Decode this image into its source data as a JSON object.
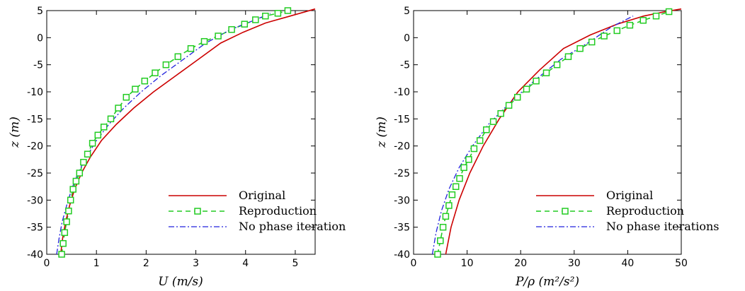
{
  "colors": {
    "original": "#cc0000",
    "reproduction": "#22cc22",
    "no_phase": "#2222dd"
  },
  "chart_data": [
    {
      "type": "line",
      "xlabel": "U (m/s)",
      "ylabel": "z (m)",
      "xlim": [
        0,
        5.4
      ],
      "ylim": [
        -40,
        5
      ],
      "xticks": [
        0,
        1,
        2,
        3,
        4,
        5
      ],
      "yticks": [
        -40,
        -35,
        -30,
        -25,
        -20,
        -15,
        -10,
        -5,
        0,
        5
      ],
      "xtick_labels": [
        "0",
        "1",
        "2",
        "3",
        "4",
        "5"
      ],
      "ytick_labels": [
        "-40",
        "-35",
        "-30",
        "-25",
        "-20",
        "-15",
        "-10",
        "-5",
        "0",
        "5"
      ],
      "legend_position": "bottom-right",
      "series": [
        {
          "name": "Original",
          "style": "solid",
          "color": "#cc0000",
          "x": [
            0.28,
            0.32,
            0.38,
            0.46,
            0.56,
            0.7,
            0.88,
            1.1,
            1.4,
            1.75,
            2.15,
            2.6,
            3.05,
            3.5,
            3.95,
            4.4,
            4.9,
            5.4
          ],
          "y": [
            -40,
            -37,
            -34,
            -31,
            -28,
            -25,
            -22,
            -19,
            -16,
            -13,
            -10,
            -7,
            -4,
            -1,
            1,
            2.7,
            4,
            5.3
          ]
        },
        {
          "name": "Reproduction",
          "style": "dashed-square",
          "color": "#22cc22",
          "x": [
            0.3,
            0.33,
            0.36,
            0.4,
            0.44,
            0.48,
            0.53,
            0.59,
            0.66,
            0.74,
            0.82,
            0.92,
            1.03,
            1.15,
            1.29,
            1.44,
            1.6,
            1.78,
            1.97,
            2.18,
            2.4,
            2.64,
            2.9,
            3.17,
            3.45,
            3.72,
            3.98,
            4.2,
            4.4,
            4.65,
            4.85
          ],
          "y": [
            -40,
            -38,
            -36,
            -34,
            -32,
            -30,
            -28,
            -26.5,
            -25,
            -23,
            -21.5,
            -19.5,
            -18,
            -16.5,
            -15,
            -13,
            -11,
            -9.5,
            -8,
            -6.5,
            -5,
            -3.5,
            -2,
            -0.7,
            0.3,
            1.5,
            2.5,
            3.3,
            4,
            4.5,
            5
          ]
        },
        {
          "name": "No phase iteration",
          "style": "dashdot",
          "color": "#2222dd",
          "x": [
            0.2,
            0.25,
            0.31,
            0.4,
            0.5,
            0.63,
            0.8,
            1.0,
            1.25,
            1.55,
            1.9,
            2.3,
            2.75,
            3.2,
            3.7,
            4.2,
            4.5
          ],
          "y": [
            -40,
            -37,
            -34,
            -31,
            -28,
            -25,
            -22,
            -19,
            -16,
            -13,
            -10,
            -7,
            -4,
            -1,
            1.5,
            3.3,
            4.5
          ]
        }
      ]
    },
    {
      "type": "line",
      "xlabel": "P/ρ (m²/s²)",
      "ylabel": "z (m)",
      "xlim": [
        0,
        50
      ],
      "ylim": [
        -40,
        5
      ],
      "xticks": [
        0,
        10,
        20,
        30,
        40,
        50
      ],
      "yticks": [
        -40,
        -35,
        -30,
        -25,
        -20,
        -15,
        -10,
        -5,
        0,
        5
      ],
      "xtick_labels": [
        "0",
        "10",
        "20",
        "30",
        "40",
        "50"
      ],
      "ytick_labels": [
        "-40",
        "-35",
        "-30",
        "-25",
        "-20",
        "-15",
        "-10",
        "-5",
        "0",
        "5"
      ],
      "legend_position": "bottom-right",
      "series": [
        {
          "name": "Original",
          "style": "solid",
          "color": "#cc0000",
          "x": [
            6,
            7,
            8.5,
            10.5,
            13,
            16,
            19.5,
            23.5,
            28,
            33,
            38,
            43,
            47,
            50
          ],
          "y": [
            -40,
            -35,
            -30,
            -25,
            -20,
            -15,
            -10,
            -6,
            -2,
            0.5,
            2.5,
            4,
            4.8,
            5.3
          ]
        },
        {
          "name": "Reproduction",
          "style": "dashed-square",
          "color": "#22cc22",
          "x": [
            4.5,
            5.0,
            5.5,
            6.0,
            6.6,
            7.2,
            7.9,
            8.6,
            9.4,
            10.3,
            11.3,
            12.4,
            13.6,
            14.9,
            16.3,
            17.8,
            19.4,
            21.1,
            22.9,
            24.8,
            26.8,
            28.9,
            31.1,
            33.3,
            35.6,
            38.0,
            40.4,
            42.9,
            45.3,
            47.7
          ],
          "y": [
            -40,
            -37.5,
            -35,
            -33,
            -31,
            -29,
            -27.5,
            -26,
            -24,
            -22.5,
            -20.5,
            -19,
            -17,
            -15.5,
            -14,
            -12.5,
            -11,
            -9.5,
            -8,
            -6.5,
            -5,
            -3.5,
            -2,
            -0.8,
            0.3,
            1.3,
            2.3,
            3.2,
            4,
            4.8
          ]
        },
        {
          "name": "No phase iterations",
          "style": "dashdot",
          "color": "#2222dd",
          "x": [
            3.5,
            4.2,
            5.2,
            6.6,
            8.5,
            11,
            14,
            18,
            22.5,
            27.5,
            32.5,
            37,
            41
          ],
          "y": [
            -40,
            -36,
            -32,
            -28,
            -24,
            -20,
            -16,
            -12,
            -8,
            -4,
            -1,
            2,
            4
          ]
        }
      ]
    }
  ]
}
